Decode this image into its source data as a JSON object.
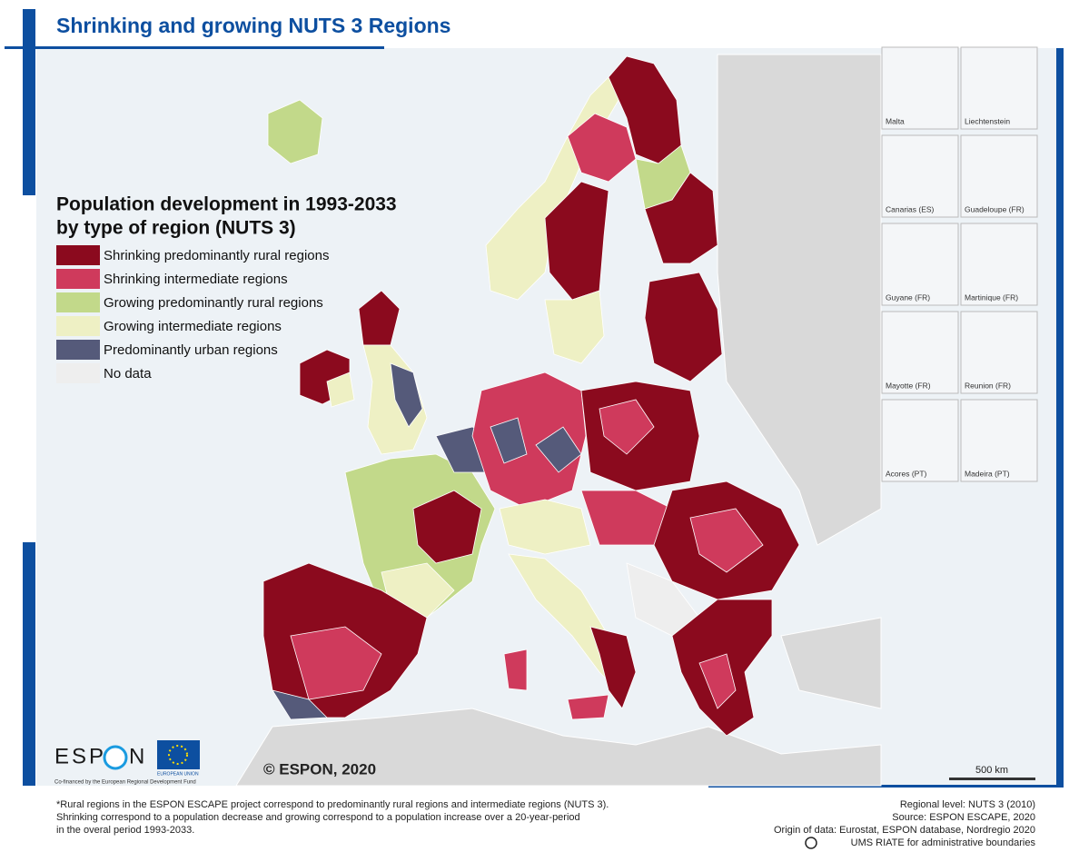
{
  "title": "Shrinking and growing NUTS 3 Regions",
  "legend": {
    "title_lines": [
      "Population development in 1993-2033",
      "by type of region (NUTS 3)"
    ],
    "items": [
      {
        "label": "Shrinking predominantly rural regions",
        "color": "#8b0a1e"
      },
      {
        "label": "Shrinking intermediate regions",
        "color": "#cf3a5c"
      },
      {
        "label": "Growing predominantly rural regions",
        "color": "#c2d98a"
      },
      {
        "label": "Growing intermediate regions",
        "color": "#eef0c4"
      },
      {
        "label": "Predominantly urban regions",
        "color": "#555a7a"
      },
      {
        "label": "No data",
        "color": "#eeeeee"
      }
    ]
  },
  "insets": [
    "Malta",
    "Liechtenstein",
    "Canarias (ES)",
    "Guadeloupe (FR)",
    "Guyane (FR)",
    "Martinique (FR)",
    "Mayotte (FR)",
    "Reunion (FR)",
    "Acores (PT)",
    "Madeira (PT)"
  ],
  "copyright": "© ESPON, 2020",
  "scale": "500 km",
  "logo": {
    "left": "ESP",
    "right": "N",
    "caption": "Co-financed by the European Regional Development Fund",
    "eu": "EUROPEAN UNION"
  },
  "footnote": [
    "*Rural regions in the ESPON ESCAPE project correspond to predominantly rural regions and intermediate regions (NUTS 3).",
    "Shrinking correspond to a population decrease and growing correspond to a population increase over a 20-year-period",
    "in the overal period 1993-2033."
  ],
  "sources": [
    "Regional level: NUTS 3 (2010)",
    "Source: ESPON ESCAPE, 2020",
    "Origin of data: Eurostat, ESPON database, Nordregio 2020",
    "UMS RIATE for administrative boundaries"
  ]
}
